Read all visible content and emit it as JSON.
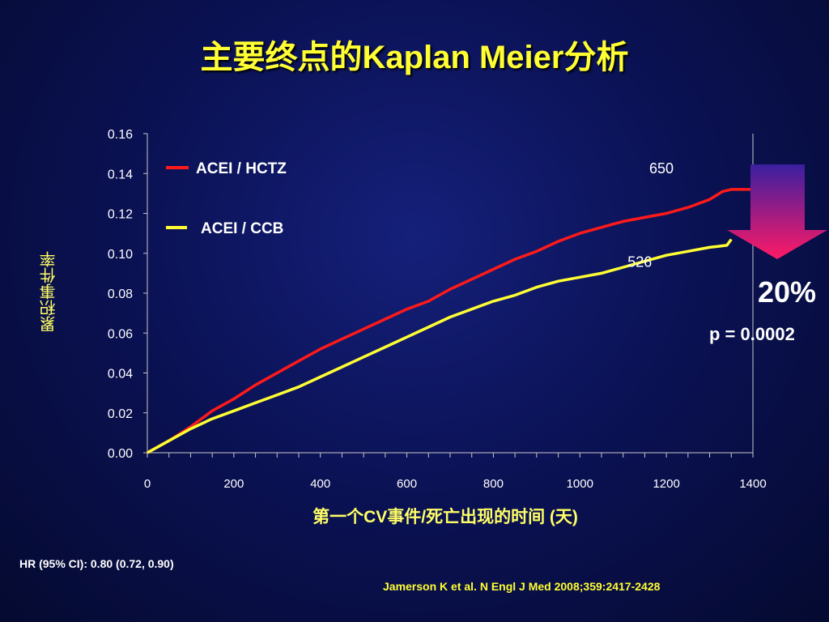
{
  "title": "主要终点的Kaplan Meier分析",
  "footer": {
    "hr": "HR (95% CI): 0.80 (0.72, 0.90)",
    "reference": "Jamerson K et al. N Engl J Med 2008;359:2417-2428"
  },
  "callout": {
    "reduction": "20%",
    "p_value": "p = 0.0002",
    "arrow_colors": [
      "#3a1fa0",
      "#ff1a66"
    ]
  },
  "colors": {
    "background": "#0b1256",
    "title": "#ffff33",
    "hctz": "#ff1a1a",
    "ccb": "#ffff33"
  },
  "chart_data": {
    "type": "line",
    "title": "主要终点的Kaplan Meier分析",
    "xlabel": "第一个CV事件/死亡出现的时间 (天)",
    "ylabel": "累积事件率",
    "xlim": [
      0,
      1400
    ],
    "ylim": [
      0.0,
      0.16
    ],
    "x_ticks": [
      "0",
      "200",
      "400",
      "600",
      "800",
      "1000",
      "1200",
      "1400"
    ],
    "y_ticks": [
      "0.00",
      "0.02",
      "0.04",
      "0.06",
      "0.08",
      "0.10",
      "0.12",
      "0.14",
      "0.16"
    ],
    "legend_position": "top-left",
    "grid": false,
    "series": [
      {
        "name": "ACEI / HCTZ",
        "color": "#ff1a1a",
        "end_label": "650",
        "points": [
          [
            0,
            0.0
          ],
          [
            50,
            0.006
          ],
          [
            100,
            0.013
          ],
          [
            150,
            0.021
          ],
          [
            200,
            0.027
          ],
          [
            250,
            0.034
          ],
          [
            300,
            0.04
          ],
          [
            350,
            0.046
          ],
          [
            400,
            0.052
          ],
          [
            450,
            0.057
          ],
          [
            500,
            0.062
          ],
          [
            550,
            0.067
          ],
          [
            600,
            0.072
          ],
          [
            650,
            0.076
          ],
          [
            700,
            0.082
          ],
          [
            750,
            0.087
          ],
          [
            800,
            0.092
          ],
          [
            850,
            0.097
          ],
          [
            900,
            0.101
          ],
          [
            950,
            0.106
          ],
          [
            1000,
            0.11
          ],
          [
            1050,
            0.113
          ],
          [
            1100,
            0.116
          ],
          [
            1150,
            0.118
          ],
          [
            1200,
            0.12
          ],
          [
            1250,
            0.123
          ],
          [
            1300,
            0.127
          ],
          [
            1330,
            0.131
          ],
          [
            1350,
            0.132
          ],
          [
            1400,
            0.132
          ]
        ]
      },
      {
        "name": "ACEI / CCB",
        "color": "#ffff33",
        "end_label": "526",
        "points": [
          [
            0,
            0.0
          ],
          [
            50,
            0.006
          ],
          [
            100,
            0.012
          ],
          [
            150,
            0.017
          ],
          [
            200,
            0.021
          ],
          [
            250,
            0.025
          ],
          [
            300,
            0.029
          ],
          [
            350,
            0.033
          ],
          [
            400,
            0.038
          ],
          [
            450,
            0.043
          ],
          [
            500,
            0.048
          ],
          [
            550,
            0.053
          ],
          [
            600,
            0.058
          ],
          [
            650,
            0.063
          ],
          [
            700,
            0.068
          ],
          [
            750,
            0.072
          ],
          [
            800,
            0.076
          ],
          [
            850,
            0.079
          ],
          [
            900,
            0.083
          ],
          [
            950,
            0.086
          ],
          [
            1000,
            0.088
          ],
          [
            1050,
            0.09
          ],
          [
            1100,
            0.093
          ],
          [
            1150,
            0.096
          ],
          [
            1200,
            0.099
          ],
          [
            1250,
            0.101
          ],
          [
            1300,
            0.103
          ],
          [
            1340,
            0.104
          ],
          [
            1350,
            0.107
          ]
        ]
      }
    ]
  }
}
